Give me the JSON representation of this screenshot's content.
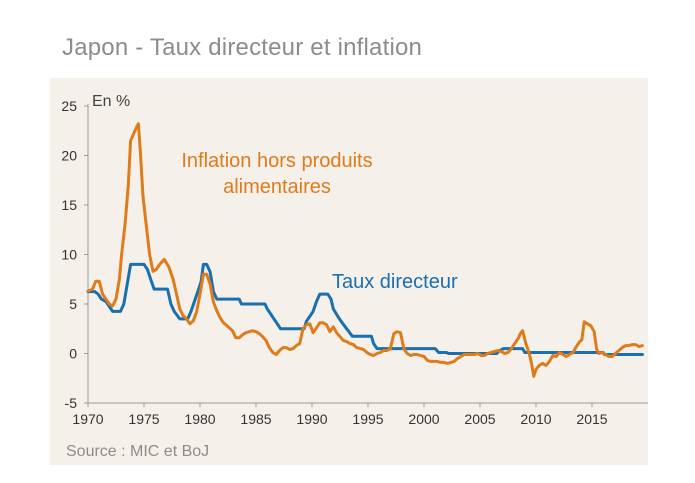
{
  "title": "Japon - Taux directeur et inflation",
  "source": "Source : MIC et BoJ",
  "colors": {
    "policy_rate": "#1a6faf",
    "inflation": "#e07b1a",
    "background": "#f5f0ea"
  },
  "chart_data": {
    "type": "line",
    "ylabel": "En %",
    "xlim": [
      1970,
      2020
    ],
    "ylim": [
      -5,
      25
    ],
    "xticks": [
      1970,
      1975,
      1980,
      1985,
      1990,
      1995,
      2000,
      2005,
      2010,
      2015
    ],
    "yticks": [
      -5,
      0,
      5,
      10,
      15,
      20,
      25
    ],
    "grid": false,
    "annotations": [
      "Inflation hors produits alimentaires",
      "Taux directeur"
    ],
    "series": [
      {
        "name": "Taux directeur",
        "color": "#1a6faf",
        "points": [
          [
            1970.0,
            6.25
          ],
          [
            1970.6,
            6.25
          ],
          [
            1970.9,
            6.0
          ],
          [
            1971.2,
            5.5
          ],
          [
            1971.6,
            5.25
          ],
          [
            1971.9,
            4.75
          ],
          [
            1972.2,
            4.25
          ],
          [
            1972.9,
            4.25
          ],
          [
            1973.2,
            5.0
          ],
          [
            1973.5,
            7.0
          ],
          [
            1973.8,
            9.0
          ],
          [
            1975.0,
            9.0
          ],
          [
            1975.3,
            8.5
          ],
          [
            1975.6,
            7.5
          ],
          [
            1975.9,
            6.5
          ],
          [
            1977.1,
            6.5
          ],
          [
            1977.4,
            5.0
          ],
          [
            1977.7,
            4.25
          ],
          [
            1978.2,
            3.5
          ],
          [
            1978.9,
            3.5
          ],
          [
            1979.2,
            4.25
          ],
          [
            1979.5,
            5.25
          ],
          [
            1979.8,
            6.25
          ],
          [
            1980.1,
            7.25
          ],
          [
            1980.3,
            9.0
          ],
          [
            1980.6,
            9.0
          ],
          [
            1980.9,
            8.25
          ],
          [
            1981.2,
            6.25
          ],
          [
            1981.5,
            5.5
          ],
          [
            1983.5,
            5.5
          ],
          [
            1983.7,
            5.0
          ],
          [
            1985.8,
            5.0
          ],
          [
            1986.0,
            4.5
          ],
          [
            1986.3,
            4.0
          ],
          [
            1986.6,
            3.5
          ],
          [
            1986.9,
            3.0
          ],
          [
            1987.2,
            2.5
          ],
          [
            1989.3,
            2.5
          ],
          [
            1989.5,
            3.25
          ],
          [
            1989.8,
            3.75
          ],
          [
            1990.1,
            4.25
          ],
          [
            1990.4,
            5.25
          ],
          [
            1990.7,
            6.0
          ],
          [
            1991.4,
            6.0
          ],
          [
            1991.7,
            5.5
          ],
          [
            1991.9,
            4.5
          ],
          [
            1992.3,
            3.75
          ],
          [
            1992.6,
            3.25
          ],
          [
            1993.1,
            2.5
          ],
          [
            1993.6,
            1.75
          ],
          [
            1995.3,
            1.75
          ],
          [
            1995.5,
            1.0
          ],
          [
            1995.8,
            0.5
          ],
          [
            2001.0,
            0.5
          ],
          [
            2001.3,
            0.1
          ],
          [
            2002.0,
            0.1
          ],
          [
            2002.2,
            0.0
          ],
          [
            2006.5,
            0.0
          ],
          [
            2006.7,
            0.25
          ],
          [
            2007.1,
            0.5
          ],
          [
            2008.8,
            0.5
          ],
          [
            2008.9,
            0.3
          ],
          [
            2009.0,
            0.1
          ],
          [
            2016.0,
            0.1
          ],
          [
            2016.1,
            -0.1
          ],
          [
            2019.5,
            -0.1
          ]
        ]
      },
      {
        "name": "Inflation hors produits alimentaires",
        "color": "#e07b1a",
        "points": [
          [
            1970.0,
            6.3
          ],
          [
            1970.4,
            6.5
          ],
          [
            1970.7,
            7.3
          ],
          [
            1971.0,
            7.3
          ],
          [
            1971.3,
            6.0
          ],
          [
            1971.6,
            5.5
          ],
          [
            1971.9,
            5.0
          ],
          [
            1972.2,
            4.8
          ],
          [
            1972.5,
            5.5
          ],
          [
            1972.8,
            7.5
          ],
          [
            1973.0,
            10.0
          ],
          [
            1973.3,
            13.0
          ],
          [
            1973.6,
            17.0
          ],
          [
            1973.8,
            21.5
          ],
          [
            1974.0,
            22.0
          ],
          [
            1974.3,
            22.8
          ],
          [
            1974.5,
            23.2
          ],
          [
            1974.7,
            20.0
          ],
          [
            1974.9,
            16.0
          ],
          [
            1975.2,
            13.0
          ],
          [
            1975.5,
            10.0
          ],
          [
            1975.8,
            8.3
          ],
          [
            1976.1,
            8.5
          ],
          [
            1976.4,
            9.0
          ],
          [
            1976.8,
            9.5
          ],
          [
            1977.2,
            8.8
          ],
          [
            1977.6,
            7.5
          ],
          [
            1977.9,
            6.0
          ],
          [
            1978.2,
            4.5
          ],
          [
            1978.5,
            3.8
          ],
          [
            1978.8,
            3.5
          ],
          [
            1979.1,
            3.0
          ],
          [
            1979.4,
            3.3
          ],
          [
            1979.7,
            4.2
          ],
          [
            1980.0,
            6.0
          ],
          [
            1980.3,
            8.0
          ],
          [
            1980.6,
            8.0
          ],
          [
            1980.9,
            7.0
          ],
          [
            1981.2,
            5.2
          ],
          [
            1981.5,
            4.3
          ],
          [
            1981.8,
            3.6
          ],
          [
            1982.1,
            3.1
          ],
          [
            1982.5,
            2.7
          ],
          [
            1982.9,
            2.3
          ],
          [
            1983.2,
            1.6
          ],
          [
            1983.5,
            1.6
          ],
          [
            1983.8,
            1.9
          ],
          [
            1984.1,
            2.1
          ],
          [
            1984.4,
            2.2
          ],
          [
            1984.7,
            2.3
          ],
          [
            1985.0,
            2.2
          ],
          [
            1985.3,
            2.0
          ],
          [
            1985.6,
            1.7
          ],
          [
            1985.9,
            1.3
          ],
          [
            1986.2,
            0.6
          ],
          [
            1986.5,
            0.1
          ],
          [
            1986.8,
            -0.1
          ],
          [
            1987.1,
            0.3
          ],
          [
            1987.4,
            0.6
          ],
          [
            1987.7,
            0.6
          ],
          [
            1988.0,
            0.4
          ],
          [
            1988.3,
            0.5
          ],
          [
            1988.6,
            0.8
          ],
          [
            1988.9,
            1.0
          ],
          [
            1989.2,
            2.5
          ],
          [
            1989.5,
            2.9
          ],
          [
            1989.8,
            3.0
          ],
          [
            1990.1,
            2.1
          ],
          [
            1990.4,
            2.6
          ],
          [
            1990.7,
            3.1
          ],
          [
            1991.0,
            3.1
          ],
          [
            1991.3,
            2.9
          ],
          [
            1991.6,
            2.2
          ],
          [
            1991.9,
            2.7
          ],
          [
            1992.2,
            2.1
          ],
          [
            1992.5,
            1.7
          ],
          [
            1992.8,
            1.3
          ],
          [
            1993.1,
            1.2
          ],
          [
            1993.4,
            1.0
          ],
          [
            1993.7,
            0.9
          ],
          [
            1994.0,
            0.6
          ],
          [
            1994.3,
            0.5
          ],
          [
            1994.6,
            0.4
          ],
          [
            1994.9,
            0.1
          ],
          [
            1995.2,
            -0.1
          ],
          [
            1995.5,
            -0.2
          ],
          [
            1995.8,
            0.0
          ],
          [
            1996.1,
            0.1
          ],
          [
            1996.4,
            0.3
          ],
          [
            1996.7,
            0.3
          ],
          [
            1997.0,
            0.5
          ],
          [
            1997.3,
            2.0
          ],
          [
            1997.6,
            2.2
          ],
          [
            1997.9,
            2.1
          ],
          [
            1998.2,
            0.5
          ],
          [
            1998.5,
            0.0
          ],
          [
            1998.8,
            -0.2
          ],
          [
            1999.1,
            -0.1
          ],
          [
            1999.4,
            -0.1
          ],
          [
            1999.7,
            -0.2
          ],
          [
            2000.0,
            -0.3
          ],
          [
            2000.3,
            -0.7
          ],
          [
            2000.6,
            -0.8
          ],
          [
            2000.9,
            -0.8
          ],
          [
            2001.2,
            -0.8
          ],
          [
            2001.5,
            -0.9
          ],
          [
            2001.8,
            -0.9
          ],
          [
            2002.1,
            -1.0
          ],
          [
            2002.4,
            -0.9
          ],
          [
            2002.7,
            -0.8
          ],
          [
            2003.0,
            -0.5
          ],
          [
            2003.3,
            -0.3
          ],
          [
            2003.6,
            -0.1
          ],
          [
            2003.9,
            -0.1
          ],
          [
            2004.2,
            -0.1
          ],
          [
            2004.5,
            -0.1
          ],
          [
            2004.8,
            0.0
          ],
          [
            2005.1,
            -0.2
          ],
          [
            2005.4,
            -0.2
          ],
          [
            2005.7,
            0.0
          ],
          [
            2006.0,
            0.1
          ],
          [
            2006.3,
            0.2
          ],
          [
            2006.6,
            0.3
          ],
          [
            2006.9,
            0.2
          ],
          [
            2007.2,
            0.0
          ],
          [
            2007.5,
            0.1
          ],
          [
            2007.8,
            0.5
          ],
          [
            2008.1,
            1.0
          ],
          [
            2008.4,
            1.5
          ],
          [
            2008.6,
            2.0
          ],
          [
            2008.8,
            2.3
          ],
          [
            2009.1,
            1.0
          ],
          [
            2009.4,
            0.0
          ],
          [
            2009.6,
            -1.0
          ],
          [
            2009.8,
            -2.3
          ],
          [
            2010.0,
            -1.6
          ],
          [
            2010.3,
            -1.2
          ],
          [
            2010.6,
            -1.0
          ],
          [
            2010.9,
            -1.2
          ],
          [
            2011.2,
            -0.8
          ],
          [
            2011.5,
            -0.2
          ],
          [
            2011.8,
            -0.3
          ],
          [
            2012.1,
            0.1
          ],
          [
            2012.4,
            -0.1
          ],
          [
            2012.7,
            -0.3
          ],
          [
            2013.0,
            -0.1
          ],
          [
            2013.3,
            0.1
          ],
          [
            2013.6,
            0.7
          ],
          [
            2013.9,
            1.2
          ],
          [
            2014.1,
            1.4
          ],
          [
            2014.3,
            3.2
          ],
          [
            2014.6,
            3.0
          ],
          [
            2014.9,
            2.8
          ],
          [
            2015.2,
            2.2
          ],
          [
            2015.4,
            0.5
          ],
          [
            2015.6,
            0.0
          ],
          [
            2015.9,
            0.1
          ],
          [
            2016.2,
            -0.1
          ],
          [
            2016.5,
            -0.3
          ],
          [
            2016.8,
            -0.3
          ],
          [
            2017.1,
            0.0
          ],
          [
            2017.4,
            0.3
          ],
          [
            2017.7,
            0.6
          ],
          [
            2018.0,
            0.8
          ],
          [
            2018.3,
            0.8
          ],
          [
            2018.6,
            0.9
          ],
          [
            2018.9,
            0.9
          ],
          [
            2019.2,
            0.7
          ],
          [
            2019.5,
            0.8
          ]
        ]
      }
    ]
  }
}
